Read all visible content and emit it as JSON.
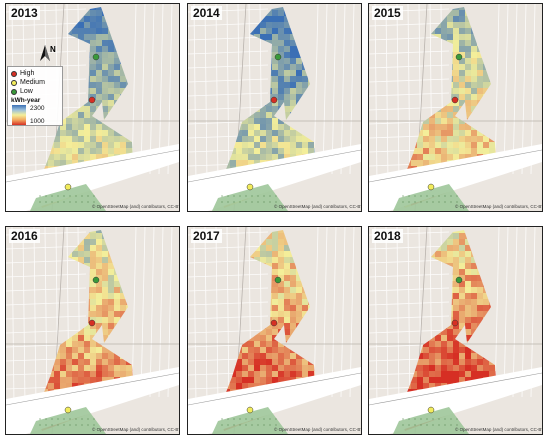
{
  "panels": [
    {
      "year": "2013",
      "attribution": "© OpenStreetMap (and) contributors, CC-BY-SA"
    },
    {
      "year": "2014",
      "attribution": "© OpenStreetMap (and) contributors, CC-BY-SA"
    },
    {
      "year": "2015",
      "attribution": "© OpenStreetMap (and) contributors, CC-BY-SA"
    },
    {
      "year": "2016",
      "attribution": "© OpenStreetMap (and) contributors, CC-BY-SA"
    },
    {
      "year": "2017",
      "attribution": "© OpenStreetMap (and) contributors, CC-BY-SA"
    },
    {
      "year": "2018",
      "attribution": "© OpenStreetMap (and) contributors, CC-BY-SA"
    }
  ],
  "legend": {
    "items": [
      {
        "label": "High",
        "color": "#d62f24"
      },
      {
        "label": "Medium",
        "color": "#f2ec5c"
      },
      {
        "label": "Low",
        "color": "#3a9a3a"
      }
    ],
    "unit": "kWh-year",
    "max": "2300",
    "min": "1000"
  },
  "north_label": "N",
  "colors": {
    "low_yield": "#3a6fb5",
    "mid_yield": "#f4ef9a",
    "high_yield": "#d62f24",
    "vegetation": "#9fc79a",
    "basemap": "#ebe6e0"
  }
}
